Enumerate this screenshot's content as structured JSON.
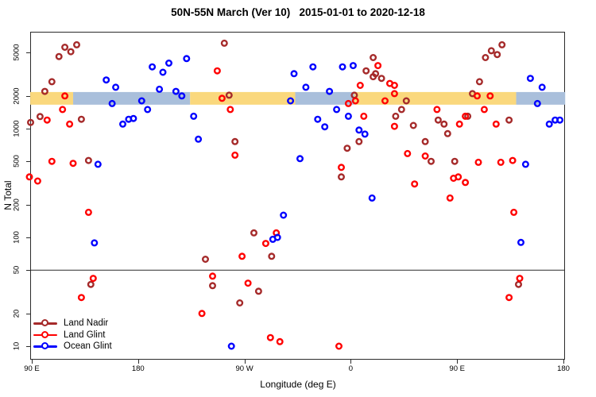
{
  "title": "50N-55N March (Ver 10)   2015-01-01 to 2020-12-18",
  "legend": {
    "items": [
      {
        "label": "Land Nadir",
        "color": "#A52A2A"
      },
      {
        "label": "Land Glint",
        "color": "#FF0000"
      },
      {
        "label": "Ocean Glint",
        "color": "#0000FF"
      }
    ]
  },
  "chart_data": {
    "type": "scatter",
    "title": "50N-55N March (Ver 10)   2015-01-01 to 2020-12-18",
    "xlabel": "Longitude (deg E)",
    "ylabel": "N Total",
    "x_axis": {
      "note": "longitude axis runs 90E eastward around the globe to 180 (values in axis degrees 90-540)",
      "range": [
        88.7,
        541.5
      ],
      "ticks": [
        {
          "deg": 90,
          "label": "90 E"
        },
        {
          "deg": 180,
          "label": "180"
        },
        {
          "deg": 270,
          "label": "90 W"
        },
        {
          "deg": 360,
          "label": "0"
        },
        {
          "deg": 450,
          "label": "90 E"
        },
        {
          "deg": 540,
          "label": "180"
        }
      ]
    },
    "y_axis": {
      "scale": "log10",
      "range": [
        8.5,
        7500
      ],
      "ticks": [
        10,
        20,
        50,
        100,
        200,
        500,
        1000,
        2000,
        5000
      ]
    },
    "reference_line_y": 50,
    "surface_band": {
      "note": "land/ocean strip drawn at N ~ 2000",
      "value_min": 1660,
      "value_max": 2170,
      "colors": {
        "land": "#FAD87D",
        "ocean": "#A9BFDB"
      },
      "segments": [
        {
          "from": 88.7,
          "to": 125,
          "type": "land"
        },
        {
          "from": 125,
          "to": 224,
          "type": "ocean"
        },
        {
          "from": 224,
          "to": 313,
          "type": "land"
        },
        {
          "from": 313,
          "to": 363,
          "type": "ocean"
        },
        {
          "from": 363,
          "to": 500,
          "type": "land"
        },
        {
          "from": 500,
          "to": 541.5,
          "type": "ocean"
        }
      ]
    },
    "series": [
      {
        "name": "Land Nadir",
        "color": "#A52A2A",
        "points": [
          [
            113,
            4600
          ],
          [
            118,
            5600
          ],
          [
            123,
            5100
          ],
          [
            128,
            5900
          ],
          [
            107,
            2700
          ],
          [
            101,
            2200
          ],
          [
            97,
            1290
          ],
          [
            89,
            1140
          ],
          [
            132,
            1220
          ],
          [
            138,
            510
          ],
          [
            253,
            6100
          ],
          [
            257,
            2030
          ],
          [
            379,
            4500
          ],
          [
            373,
            3400
          ],
          [
            381,
            3200
          ],
          [
            379,
            3000
          ],
          [
            386,
            2900
          ],
          [
            363,
            2030
          ],
          [
            367,
            760
          ],
          [
            357,
            660
          ],
          [
            352,
            360
          ],
          [
            262,
            760
          ],
          [
            474,
            4500
          ],
          [
            479,
            5200
          ],
          [
            484,
            4800
          ],
          [
            488,
            5900
          ],
          [
            469,
            2700
          ],
          [
            463,
            2100
          ],
          [
            407,
            1800
          ],
          [
            403,
            1500
          ],
          [
            494,
            1200
          ],
          [
            413,
            1070
          ],
          [
            434,
            1200
          ],
          [
            439,
            1100
          ],
          [
            442,
            900
          ],
          [
            423,
            760
          ],
          [
            428,
            500
          ],
          [
            448,
            500
          ],
          [
            502,
            37
          ],
          [
            140,
            37
          ],
          [
            237,
            63
          ],
          [
            243,
            36
          ],
          [
            282,
            32
          ],
          [
            266,
            25
          ],
          [
            293,
            67
          ],
          [
            278,
            110
          ],
          [
            398,
            1300
          ],
          [
            459,
            1300
          ]
        ]
      },
      {
        "name": "Land Glint",
        "color": "#FF0000",
        "points": [
          [
            118,
            2000
          ],
          [
            116,
            1500
          ],
          [
            103,
            1200
          ],
          [
            122,
            1100
          ],
          [
            107,
            500
          ],
          [
            125,
            480
          ],
          [
            88,
            360
          ],
          [
            95,
            330
          ],
          [
            138,
            170
          ],
          [
            142,
            42
          ],
          [
            132,
            28
          ],
          [
            234,
            20
          ],
          [
            247,
            3400
          ],
          [
            251,
            1900
          ],
          [
            258,
            1500
          ],
          [
            262,
            570
          ],
          [
            297,
            110
          ],
          [
            288,
            88
          ],
          [
            268,
            67
          ],
          [
            243,
            44
          ],
          [
            273,
            38
          ],
          [
            292,
            12
          ],
          [
            300,
            11
          ],
          [
            350,
            10
          ],
          [
            383,
            3800
          ],
          [
            368,
            2500
          ],
          [
            397,
            2100
          ],
          [
            389,
            1800
          ],
          [
            358,
            1700
          ],
          [
            364,
            1800
          ],
          [
            371,
            1300
          ],
          [
            397,
            1050
          ],
          [
            352,
            440
          ],
          [
            393,
            2600
          ],
          [
            397,
            2500
          ],
          [
            408,
            590
          ],
          [
            423,
            560
          ],
          [
            433,
            1500
          ],
          [
            457,
            1300
          ],
          [
            452,
            1100
          ],
          [
            467,
            2000
          ],
          [
            478,
            2000
          ],
          [
            473,
            1500
          ],
          [
            483,
            1100
          ],
          [
            468,
            490
          ],
          [
            487,
            490
          ],
          [
            497,
            510
          ],
          [
            447,
            350
          ],
          [
            451,
            360
          ],
          [
            457,
            320
          ],
          [
            414,
            310
          ],
          [
            444,
            230
          ],
          [
            498,
            170
          ],
          [
            503,
            42
          ],
          [
            494,
            28
          ]
        ]
      },
      {
        "name": "Ocean Glint",
        "color": "#0000FF",
        "points": [
          [
            221,
            4400
          ],
          [
            206,
            4000
          ],
          [
            192,
            3700
          ],
          [
            201,
            3300
          ],
          [
            153,
            2800
          ],
          [
            161,
            2400
          ],
          [
            198,
            2300
          ],
          [
            212,
            2200
          ],
          [
            217,
            2000
          ],
          [
            158,
            1700
          ],
          [
            183,
            1800
          ],
          [
            188,
            1500
          ],
          [
            227,
            1300
          ],
          [
            172,
            1220
          ],
          [
            176,
            1240
          ],
          [
            167,
            1100
          ],
          [
            231,
            800
          ],
          [
            146,
            470
          ],
          [
            143,
            89
          ],
          [
            312,
            3200
          ],
          [
            328,
            3700
          ],
          [
            353,
            3700
          ],
          [
            362,
            3800
          ],
          [
            322,
            2400
          ],
          [
            342,
            2200
          ],
          [
            309,
            1800
          ],
          [
            348,
            1500
          ],
          [
            358,
            1300
          ],
          [
            332,
            1220
          ],
          [
            338,
            1040
          ],
          [
            367,
            970
          ],
          [
            372,
            890
          ],
          [
            317,
            530
          ],
          [
            378,
            230
          ],
          [
            303,
            160
          ],
          [
            298,
            100
          ],
          [
            294,
            96
          ],
          [
            259,
            10
          ],
          [
            512,
            2900
          ],
          [
            522,
            2400
          ],
          [
            518,
            1700
          ],
          [
            528,
            1100
          ],
          [
            533,
            1200
          ],
          [
            537,
            1200
          ],
          [
            508,
            470
          ],
          [
            504,
            90
          ]
        ]
      }
    ]
  }
}
